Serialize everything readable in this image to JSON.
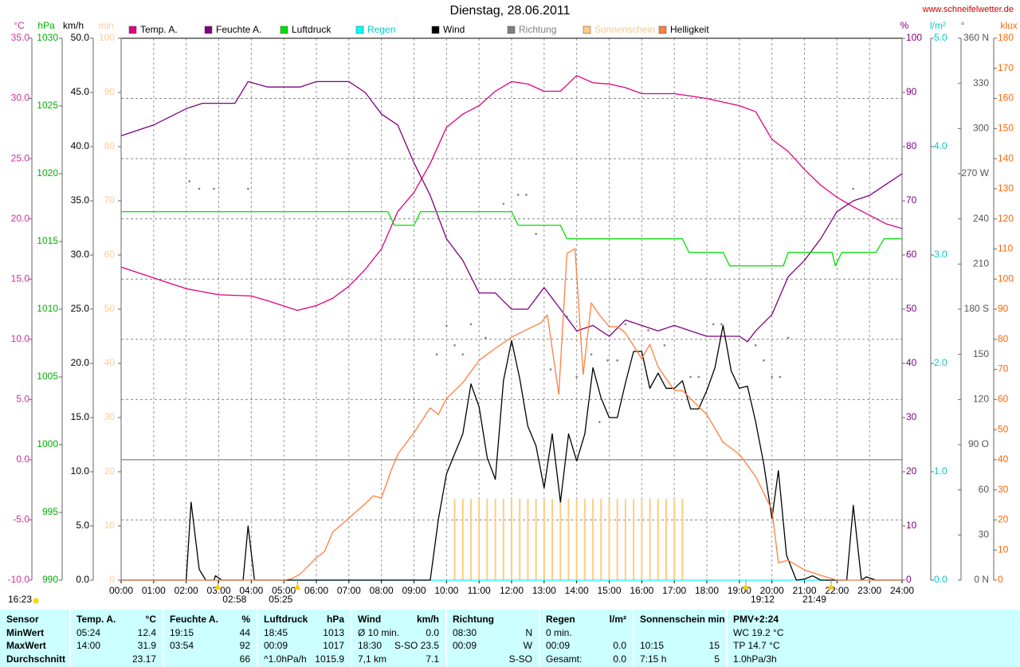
{
  "chart_data": {
    "type": "line",
    "title": "Dienstag, 28.06.2011",
    "source": "www.schneifelwetter.de",
    "grid": true,
    "xlim": [
      0,
      24
    ],
    "xticks": [
      {
        "value": 0,
        "label": "00:00"
      },
      {
        "value": 1,
        "label": "01:00"
      },
      {
        "value": 2,
        "label": "02:00"
      },
      {
        "value": 3,
        "label": "03:00"
      },
      {
        "value": 4,
        "label": "04:00"
      },
      {
        "value": 5,
        "label": "05:00"
      },
      {
        "value": 6,
        "label": "06:00"
      },
      {
        "value": 7,
        "label": "07:00"
      },
      {
        "value": 8,
        "label": "08:00"
      },
      {
        "value": 9,
        "label": "09:00"
      },
      {
        "value": 10,
        "label": "10:00"
      },
      {
        "value": 11,
        "label": "11:00"
      },
      {
        "value": 12,
        "label": "12:00"
      },
      {
        "value": 13,
        "label": "13:00"
      },
      {
        "value": 14,
        "label": "14:00"
      },
      {
        "value": 15,
        "label": "15:00"
      },
      {
        "value": 16,
        "label": "16:00"
      },
      {
        "value": 17,
        "label": "17:00"
      },
      {
        "value": 18,
        "label": "18:00"
      },
      {
        "value": 19,
        "label": "19:00"
      },
      {
        "value": 20,
        "label": "20:00"
      },
      {
        "value": 21,
        "label": "21:00"
      },
      {
        "value": 22,
        "label": "22:00"
      },
      {
        "value": 23,
        "label": "23:00"
      },
      {
        "value": 24,
        "label": "24:00"
      }
    ],
    "axes": [
      {
        "unit": "°C",
        "color": "#cc3399",
        "ylim": [
          -10,
          35
        ],
        "yticks": [
          {
            "value": -10,
            "label": "-10.0"
          },
          {
            "value": -5,
            "label": "-5.0"
          },
          {
            "value": 0,
            "label": "0.0"
          },
          {
            "value": 5,
            "label": "5.0"
          },
          {
            "value": 10,
            "label": "10.0"
          },
          {
            "value": 15,
            "label": "15.0"
          },
          {
            "value": 20,
            "label": "20.0"
          },
          {
            "value": 25,
            "label": "25.0"
          },
          {
            "value": 30,
            "label": "30.0"
          },
          {
            "value": 35,
            "label": "35.0"
          }
        ]
      },
      {
        "unit": "hPa",
        "color": "#00b000",
        "ylim": [
          990,
          1030
        ],
        "yticks": [
          990,
          995,
          1000,
          1005,
          1010,
          1015,
          1020,
          1025,
          1030
        ]
      },
      {
        "unit": "km/h",
        "color": "#000000",
        "ylim": [
          0,
          50
        ],
        "yticks": [
          {
            "value": 0,
            "label": "0.0"
          },
          {
            "value": 5,
            "label": "5.0"
          },
          {
            "value": 10,
            "label": "10.0"
          },
          {
            "value": 15,
            "label": "15.0"
          },
          {
            "value": 20,
            "label": "20.0"
          },
          {
            "value": 25,
            "label": "25.0"
          },
          {
            "value": 30,
            "label": "30.0"
          },
          {
            "value": 35,
            "label": "35.0"
          },
          {
            "value": 40,
            "label": "40.0"
          },
          {
            "value": 45,
            "label": "45.0"
          },
          {
            "value": 50,
            "label": "50.0"
          }
        ]
      },
      {
        "unit": "min",
        "color": "#ffcc99",
        "ylim": [
          0,
          100
        ],
        "yticks": [
          0,
          10,
          20,
          30,
          40,
          50,
          60,
          70,
          80,
          90,
          100
        ]
      },
      {
        "unit": "%",
        "color": "#800080",
        "ylim": [
          0,
          100
        ],
        "yticks": [
          0,
          10,
          20,
          30,
          40,
          50,
          60,
          70,
          80,
          90,
          100
        ]
      },
      {
        "unit": "l/m²",
        "color": "#00cccc",
        "ylim": [
          0,
          5
        ],
        "yticks": [
          {
            "value": 0,
            "label": "0.0"
          },
          {
            "value": 1,
            "label": "1.0"
          },
          {
            "value": 2,
            "label": "2.0"
          },
          {
            "value": 3,
            "label": "3.0"
          },
          {
            "value": 4,
            "label": "4.0"
          },
          {
            "value": 5,
            "label": "5.0"
          }
        ]
      },
      {
        "unit": "°",
        "color": "#555555",
        "ylim": [
          0,
          360
        ],
        "yticks": [
          {
            "value": 0,
            "label": "0 N"
          },
          30,
          60,
          {
            "value": 90,
            "label": "90 O"
          },
          120,
          150,
          {
            "value": 180,
            "label": "180 S"
          },
          210,
          240,
          {
            "value": 270,
            "label": "270 W"
          },
          300,
          330,
          {
            "value": 360,
            "label": "360 N"
          }
        ]
      },
      {
        "unit": "klux",
        "color": "#ff6600",
        "ylim": [
          0,
          180
        ],
        "yticks": [
          0,
          10,
          20,
          30,
          40,
          50,
          60,
          70,
          80,
          90,
          100,
          110,
          120,
          130,
          140,
          150,
          160,
          170,
          180
        ]
      }
    ],
    "series": [
      {
        "name": "Temp. A.",
        "type": "line",
        "axis": 0,
        "color": "#e0007f",
        "x": [
          0,
          1,
          2,
          3,
          4,
          4.5,
          5.42,
          6,
          6.5,
          7,
          7.5,
          8,
          8.5,
          9,
          9.5,
          10,
          10.5,
          11,
          11.5,
          12,
          12.5,
          13,
          13.5,
          14,
          14.5,
          15,
          15.5,
          16,
          16.5,
          17,
          17.5,
          18,
          18.5,
          19,
          19.5,
          20,
          20.5,
          21,
          21.5,
          22,
          22.5,
          23,
          23.5,
          24
        ],
        "values": [
          16.0,
          15.1,
          14.2,
          13.7,
          13.6,
          13.2,
          12.4,
          12.8,
          13.4,
          14.4,
          15.8,
          17.5,
          20.6,
          22.2,
          24.6,
          27.6,
          28.7,
          29.4,
          30.6,
          31.4,
          31.2,
          30.6,
          30.6,
          31.9,
          31.3,
          31.2,
          30.9,
          30.4,
          30.4,
          30.4,
          30.2,
          30.0,
          29.7,
          29.4,
          28.9,
          26.6,
          25.6,
          24.1,
          22.8,
          21.8,
          21.0,
          20.3,
          19.6,
          19.2
        ]
      },
      {
        "name": "Feuchte A.",
        "type": "line",
        "axis": 4,
        "color": "#800080",
        "x": [
          0,
          0.5,
          1,
          2,
          2.5,
          3.5,
          3.9,
          4.5,
          5.5,
          6,
          7,
          7.5,
          8,
          8.5,
          9,
          9.5,
          10,
          10.5,
          11,
          11.5,
          12,
          12.5,
          13,
          13.5,
          14,
          14.5,
          15,
          15.5,
          16,
          16.5,
          17,
          17.5,
          18,
          18.5,
          19,
          19.25,
          19.5,
          20,
          20.5,
          21,
          21.5,
          22,
          22.5,
          23,
          23.5,
          24
        ],
        "values": [
          82,
          83,
          84,
          87,
          88,
          88,
          92,
          91,
          91,
          92,
          92,
          90,
          86,
          84,
          77,
          71,
          63,
          59,
          53,
          53,
          50,
          50,
          54,
          50,
          46,
          47,
          45,
          48,
          47,
          46,
          47,
          46,
          45,
          45,
          45,
          44,
          46,
          49,
          56,
          59,
          63,
          68,
          70,
          71,
          73,
          75
        ]
      },
      {
        "name": "Luftdruck",
        "type": "line",
        "axis": 1,
        "color": "#00e000",
        "x": [
          0,
          8.2,
          8.4,
          9.0,
          9.2,
          12.0,
          12.2,
          13.5,
          13.7,
          17.25,
          17.45,
          18.5,
          18.7,
          20.35,
          20.5,
          21.85,
          21.95,
          22.15,
          23.2,
          23.45,
          24
        ],
        "values": [
          1017.2,
          1017.2,
          1016.2,
          1016.2,
          1017.2,
          1017.2,
          1016.2,
          1016.2,
          1015.2,
          1015.2,
          1014.2,
          1014.2,
          1013.2,
          1013.2,
          1014.2,
          1014.2,
          1013.2,
          1014.2,
          1014.2,
          1015.2,
          1015.2
        ]
      },
      {
        "name": "Regen",
        "type": "line",
        "axis": 5,
        "color": "#00ffff",
        "text_color": "#00cccc",
        "x": [
          0,
          24
        ],
        "values": [
          0,
          0
        ]
      },
      {
        "name": "Wind",
        "type": "line",
        "axis": 2,
        "color": "#000000",
        "x": [
          0,
          2.0,
          2.15,
          2.4,
          2.6,
          2.85,
          2.9,
          3.1,
          3.75,
          3.9,
          4.1,
          9.5,
          9.75,
          10.0,
          10.5,
          10.75,
          11.0,
          11.25,
          11.5,
          11.75,
          12.0,
          12.25,
          12.5,
          12.75,
          13.0,
          13.25,
          13.5,
          13.75,
          14.0,
          14.25,
          14.5,
          14.75,
          15.0,
          15.25,
          15.5,
          15.75,
          16.0,
          16.25,
          16.5,
          16.75,
          17.0,
          17.25,
          17.5,
          17.75,
          18.0,
          18.25,
          18.5,
          18.75,
          19.0,
          19.25,
          19.5,
          19.75,
          20.0,
          20.2,
          20.45,
          20.75,
          21.0,
          21.25,
          21.5,
          22.3,
          22.5,
          22.75,
          22.9,
          23.2,
          24
        ],
        "values": [
          0,
          0,
          7.2,
          1.0,
          0,
          0,
          0.4,
          0,
          0,
          5.0,
          0,
          0,
          5.6,
          9.8,
          13.5,
          18.1,
          16.0,
          11.3,
          9.3,
          18.4,
          22.1,
          18.6,
          14.2,
          12.4,
          8.5,
          13.5,
          7.2,
          13.5,
          11.0,
          13.5,
          19.6,
          16.8,
          15.0,
          15.0,
          18.2,
          21.1,
          21.1,
          17.7,
          19.1,
          17.7,
          17.7,
          18.4,
          15.8,
          15.8,
          17.5,
          19.6,
          23.5,
          19.3,
          17.7,
          17.9,
          14.6,
          10.7,
          5.7,
          10.1,
          2.3,
          0,
          0.1,
          0.4,
          0,
          0,
          6.9,
          0,
          0.3,
          0,
          0
        ]
      },
      {
        "name": "Richtung",
        "type": "scatter",
        "axis": 6,
        "color": "#808080",
        "text_color": "#808080",
        "x": [
          2.1,
          2.4,
          2.85,
          3.9,
          9.7,
          10.0,
          10.25,
          10.5,
          10.75,
          11.2,
          11.75,
          12.2,
          12.45,
          12.75,
          13.2,
          13.7,
          14.0,
          14.45,
          14.7,
          14.95,
          15.25,
          15.5,
          16.2,
          16.7,
          17.5,
          17.75,
          18.2,
          18.45,
          19.5,
          19.75,
          20.0,
          20.25,
          20.5,
          22.5
        ],
        "values": [
          265,
          260,
          260,
          260,
          150,
          169,
          156,
          150,
          170,
          161,
          250,
          256,
          256,
          230,
          140,
          175,
          135,
          150,
          105,
          146,
          146,
          170,
          166,
          156,
          135,
          135,
          170,
          170,
          156,
          146,
          135,
          135,
          161,
          260
        ]
      },
      {
        "name": "Sonnenschein",
        "type": "bar",
        "axis": 3,
        "color": "#ffcc80",
        "text_color": "#f0c890",
        "x": [
          10.25,
          10.5,
          10.75,
          11,
          11.25,
          11.5,
          11.75,
          12,
          12.25,
          12.5,
          12.75,
          13,
          13.25,
          13.5,
          13.75,
          14,
          14.25,
          14.5,
          14.75,
          15,
          15.25,
          15.5,
          15.75,
          16,
          16.25,
          16.5,
          16.75,
          17,
          17.25
        ],
        "values": [
          15,
          15,
          15,
          15,
          15,
          15,
          15,
          15,
          15,
          15,
          15,
          15,
          15,
          15,
          15,
          15,
          15,
          15,
          15,
          15,
          15,
          15,
          15,
          15,
          15,
          15,
          15,
          15,
          15
        ]
      },
      {
        "name": "Helligkeit",
        "type": "line",
        "axis": 7,
        "color": "#ff7f3f",
        "x": [
          0,
          5.0,
          5.25,
          5.5,
          6.0,
          6.25,
          6.5,
          7.0,
          7.5,
          7.75,
          8.0,
          8.3,
          8.5,
          9.0,
          9.5,
          9.75,
          10.0,
          10.5,
          11.0,
          11.5,
          12.0,
          12.5,
          12.9,
          13.1,
          13.45,
          13.7,
          13.95,
          14.2,
          14.45,
          14.7,
          15.0,
          15.25,
          15.5,
          16.0,
          16.25,
          16.5,
          17.0,
          17.25,
          17.5,
          18.0,
          18.5,
          19.0,
          19.5,
          20.0,
          20.2,
          20.5,
          21.0,
          21.5,
          22.0,
          24
        ],
        "values": [
          0,
          0,
          0.5,
          2,
          7.4,
          9.5,
          15.9,
          20.6,
          25.4,
          28,
          27.3,
          36.5,
          41.8,
          49,
          57.2,
          55,
          60.3,
          65.6,
          73,
          77,
          80.7,
          83.4,
          85.5,
          88.1,
          61.7,
          108.5,
          110.1,
          68.3,
          92.1,
          88.1,
          84.2,
          84.2,
          82.1,
          73.6,
          78.3,
          70.9,
          63,
          63,
          60.3,
          55,
          45.8,
          41.8,
          34.4,
          23.3,
          5.8,
          6.6,
          3.4,
          1.6,
          0,
          0
        ]
      }
    ],
    "day_length": "16:23",
    "events": [
      {
        "x": 2.97,
        "label": "02:58"
      },
      {
        "x": 5.42,
        "label": "05:25"
      },
      {
        "x": 19.2,
        "label": "19:12"
      },
      {
        "x": 21.82,
        "label": "21:49"
      }
    ]
  },
  "table": {
    "rows": [
      [
        {
          "l": "Sensor"
        },
        {
          "l": "Temp. A.",
          "r": "°C"
        },
        {
          "l": "Feuchte A.",
          "r": "%"
        },
        {
          "l": "Luftdruck",
          "r": "hPa"
        },
        {
          "l": "Wind",
          "r": "km/h"
        },
        {
          "l": "Richtung"
        },
        {
          "l": "Regen",
          "r": "l/m²"
        },
        {
          "l": "Sonnenschein min"
        },
        {
          "l": "PMV+2:24"
        }
      ],
      [
        {
          "l": "MinWert"
        },
        {
          "l": "05:24",
          "r": "12.4"
        },
        {
          "l": "19:15",
          "r": "44"
        },
        {
          "l": "18:45",
          "r": "1013"
        },
        {
          "l": "Ø 10 min.",
          "r": "0.0"
        },
        {
          "l": "08:30",
          "r": "N"
        },
        {
          "l": "0 min."
        },
        {},
        {
          "l": "WC 19.2 °C"
        }
      ],
      [
        {
          "l": "MaxWert"
        },
        {
          "l": "14:00",
          "r": "31.9"
        },
        {
          "l": "03:54",
          "r": "92"
        },
        {
          "l": "00:09",
          "r": "1017"
        },
        {
          "l": "18:30",
          "r": "S-SO 23.5"
        },
        {
          "l": "00:09",
          "r": "W"
        },
        {
          "l": "00:09",
          "r": "0.0"
        },
        {
          "l": "10:15",
          "r": "15"
        },
        {
          "l": "TP 14.7 °C"
        }
      ],
      [
        {
          "l": "Durchschnitt"
        },
        {
          "r": "23.17"
        },
        {
          "r": "66"
        },
        {
          "l": "^1.0hPa/h",
          "r": "1015.9"
        },
        {
          "l": "7,1 km",
          "r": "7.1"
        },
        {
          "r": "S-SO"
        },
        {
          "l": "Gesamt:",
          "r": "0.0"
        },
        {
          "l": "7:15 h",
          "r": "5"
        },
        {
          "l": "1.0hPa/3h"
        }
      ]
    ]
  }
}
